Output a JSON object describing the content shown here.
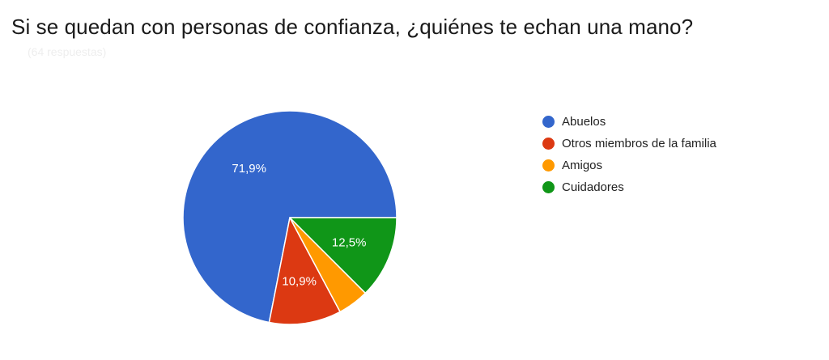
{
  "chart_data": {
    "type": "pie",
    "title": "Si se quedan con personas de confianza, ¿quiénes te echan una mano?",
    "subtitle": "(64 respuestas)",
    "categories": [
      "Abuelos",
      "Otros miembros de la familia",
      "Amigos",
      "Cuidadores"
    ],
    "values": [
      71.9,
      10.9,
      4.7,
      12.5
    ],
    "data_labels": [
      "71,9%",
      "10,9%",
      "",
      "12,5%"
    ],
    "colors": [
      "#3366cc",
      "#dc3912",
      "#ff9900",
      "#109618"
    ],
    "legend_position": "right",
    "start_angle": "3 o'clock",
    "direction": "counterclockwise"
  }
}
